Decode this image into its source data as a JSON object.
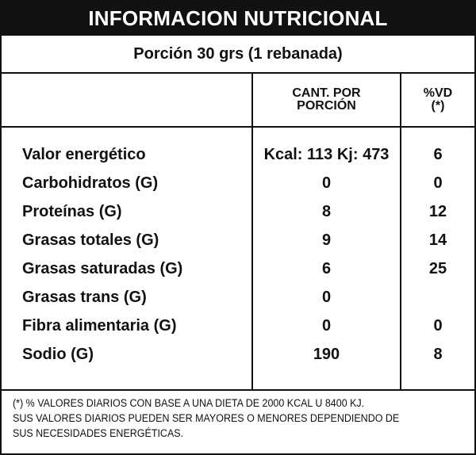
{
  "title": "INFORMACION NUTRICIONAL",
  "serving": "Porción 30 grs (1 rebanada)",
  "columns": {
    "amount_line1": "CANT. POR",
    "amount_line2": "PORCIÓN",
    "dv_line1": "%VD",
    "dv_line2": "(*)"
  },
  "rows": [
    {
      "name": "Valor energético",
      "amount": "Kcal: 113 Kj: 473",
      "dv": "6"
    },
    {
      "name": "Carbohidratos (G)",
      "amount": "0",
      "dv": "0"
    },
    {
      "name": "Proteínas (G)",
      "amount": "8",
      "dv": "12"
    },
    {
      "name": "Grasas totales (G)",
      "amount": "9",
      "dv": "14"
    },
    {
      "name": "Grasas saturadas (G)",
      "amount": "6",
      "dv": "25"
    },
    {
      "name": "Grasas trans (G)",
      "amount": "0",
      "dv": ""
    },
    {
      "name": "Fibra alimentaria (G)",
      "amount": "0",
      "dv": "0"
    },
    {
      "name": "Sodio (G)",
      "amount": "190",
      "dv": "8"
    }
  ],
  "footnote": {
    "line1": "(*) % VALORES DIARIOS CON BASE A UNA DIETA DE 2000 KCAL U 8400 KJ.",
    "line2": "SUS VALORES DIARIOS PUEDEN SER MAYORES O MENORES DEPENDIENDO DE",
    "line3": "SUS NECESIDADES ENERGÉTICAS."
  }
}
